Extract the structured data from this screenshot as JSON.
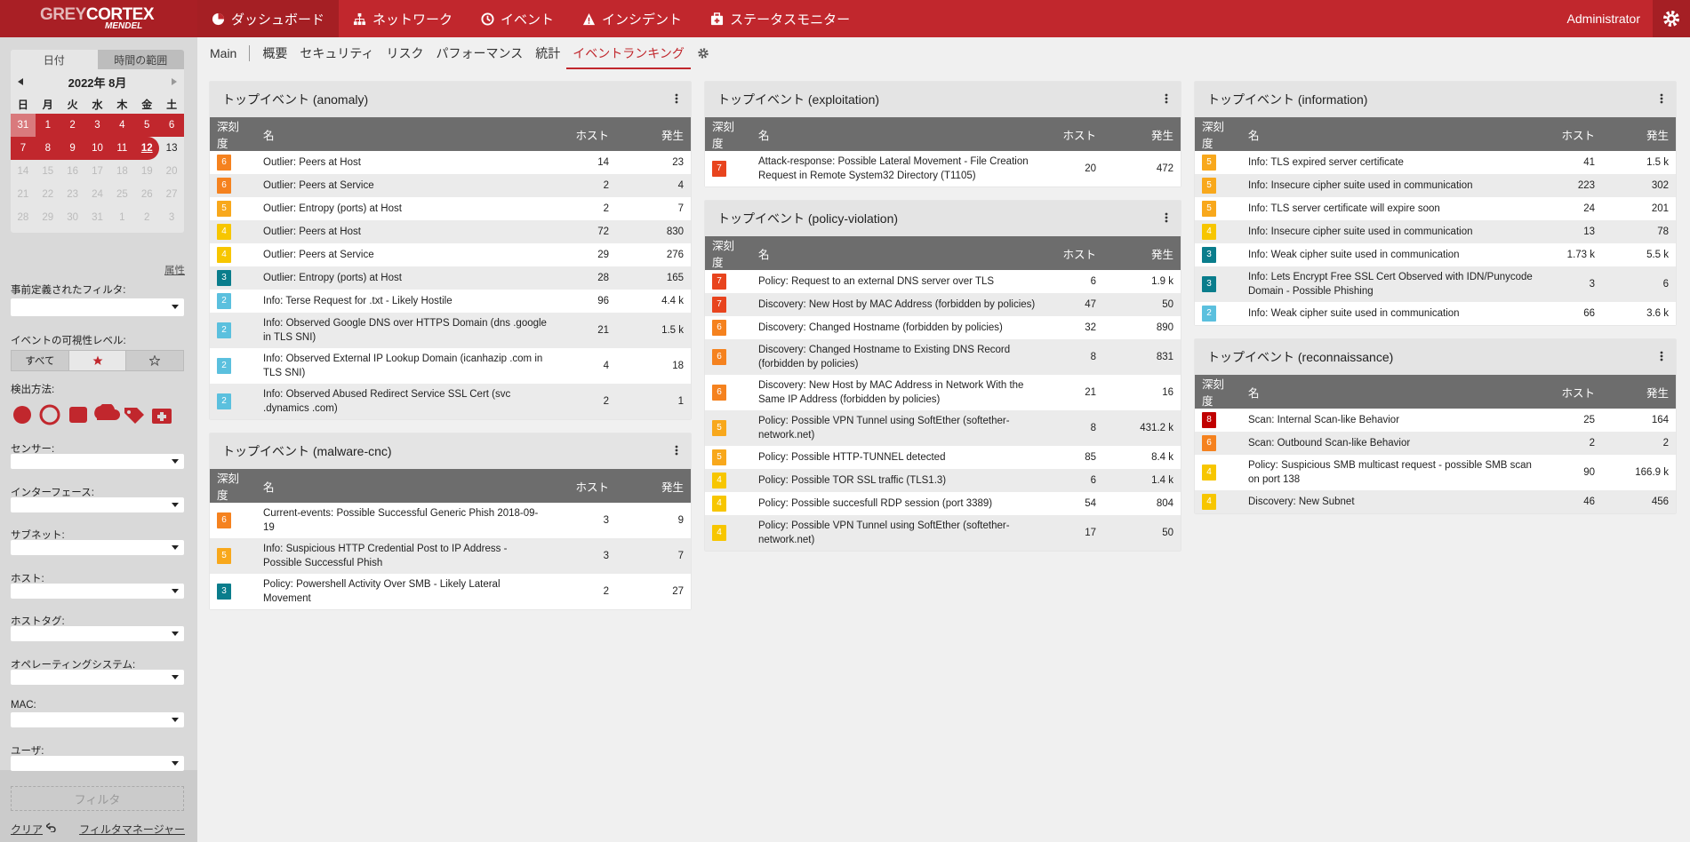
{
  "header": {
    "logo_grey": "GREY",
    "logo_cortex": "CORTEX",
    "logo_sub": "MENDEL",
    "nav": [
      "ダッシュボード",
      "ネットワーク",
      "イベント",
      "インシデント",
      "ステータスモニター"
    ],
    "user": "Administrator"
  },
  "subnav": [
    "Main",
    "概要",
    "セキュリティ",
    "リスク",
    "パフォーマンス",
    "統計",
    "イベントランキング"
  ],
  "sidebar": {
    "tabs": [
      "日付",
      "時間の範囲"
    ],
    "month": "2022年 8月",
    "weekdays": [
      "日",
      "月",
      "火",
      "水",
      "木",
      "金",
      "土"
    ],
    "days": [
      31,
      1,
      2,
      3,
      4,
      5,
      6,
      7,
      8,
      9,
      10,
      11,
      12,
      13,
      14,
      15,
      16,
      17,
      18,
      19,
      20,
      21,
      22,
      23,
      24,
      25,
      26,
      27,
      28,
      29,
      30,
      31,
      1,
      2,
      3
    ],
    "attributes": "属性",
    "predefined": "事前定義されたフィルタ:",
    "visibility": "イベントの可視性レベル:",
    "visibility_all": "すべて",
    "detection": "検出方法:",
    "filters": [
      "センサー:",
      "インターフェース:",
      "サブネット:",
      "ホスト:",
      "ホストタグ:",
      "オペレーティングシステム:",
      "MAC:",
      "ユーザ:"
    ],
    "filter_button": "フィルタ",
    "clear": "クリア",
    "filter_manager": "フィルタマネージャー"
  },
  "columns": [
    {
      "panels": [
        {
          "title": "トップイベント (anomaly)",
          "columns": [
            "深刻度",
            "名",
            "ホスト",
            "発生"
          ],
          "rows": [
            [
              6,
              "Outlier: Peers at Host",
              "14",
              "23"
            ],
            [
              6,
              "Outlier: Peers at Service",
              "2",
              "4"
            ],
            [
              5,
              "Outlier: Entropy (ports) at Host",
              "2",
              "7"
            ],
            [
              4,
              "Outlier: Peers at Host",
              "72",
              "830"
            ],
            [
              4,
              "Outlier: Peers at Service",
              "29",
              "276"
            ],
            [
              3,
              "Outlier: Entropy (ports) at Host",
              "28",
              "165"
            ],
            [
              2,
              "Info: Terse Request for .txt - Likely Hostile",
              "96",
              "4.4 k"
            ],
            [
              2,
              "Info: Observed Google DNS over HTTPS Domain (dns .google in TLS SNI)",
              "21",
              "1.5 k"
            ],
            [
              2,
              "Info: Observed External IP Lookup Domain (icanhazip .com in TLS SNI)",
              "4",
              "18"
            ],
            [
              2,
              "Info: Observed Abused Redirect Service SSL Cert (svc .dynamics .com)",
              "2",
              "1"
            ]
          ]
        },
        {
          "title": "トップイベント (malware-cnc)",
          "columns": [
            "深刻度",
            "名",
            "ホスト",
            "発生"
          ],
          "rows": [
            [
              6,
              "Current-events: Possible Successful Generic Phish 2018-09-19",
              "3",
              "9"
            ],
            [
              5,
              "Info: Suspicious HTTP Credential Post to IP Address - Possible Successful Phish",
              "3",
              "7"
            ],
            [
              3,
              "Policy: Powershell Activity Over SMB - Likely Lateral Movement",
              "2",
              "27"
            ]
          ]
        }
      ]
    },
    {
      "panels": [
        {
          "title": "トップイベント (exploitation)",
          "columns": [
            "深刻度",
            "名",
            "ホスト",
            "発生"
          ],
          "rows": [
            [
              7,
              "Attack-response: Possible Lateral Movement - File Creation Request in Remote System32 Directory (T1105)",
              "20",
              "472"
            ]
          ]
        },
        {
          "title": "トップイベント (policy-violation)",
          "columns": [
            "深刻度",
            "名",
            "ホスト",
            "発生"
          ],
          "rows": [
            [
              7,
              "Policy: Request to an external DNS server over TLS",
              "6",
              "1.9 k"
            ],
            [
              7,
              "Discovery: New Host by MAC Address (forbidden by policies)",
              "47",
              "50"
            ],
            [
              6,
              "Discovery: Changed Hostname (forbidden by policies)",
              "32",
              "890"
            ],
            [
              6,
              "Discovery: Changed Hostname to Existing DNS Record (forbidden by policies)",
              "8",
              "831"
            ],
            [
              6,
              "Discovery: New Host by MAC Address in Network With the Same IP Address (forbidden by policies)",
              "21",
              "16"
            ],
            [
              5,
              "Policy: Possible VPN Tunnel using SoftEther (softether-network.net)",
              "8",
              "431.2 k"
            ],
            [
              5,
              "Policy: Possible HTTP-TUNNEL detected",
              "85",
              "8.4 k"
            ],
            [
              4,
              "Policy: Possible TOR SSL traffic (TLS1.3)",
              "6",
              "1.4 k"
            ],
            [
              4,
              "Policy: Possible succesfull RDP session (port 3389)",
              "54",
              "804"
            ],
            [
              4,
              "Policy: Possible VPN Tunnel using SoftEther (softether-network.net)",
              "17",
              "50"
            ]
          ]
        }
      ]
    },
    {
      "panels": [
        {
          "title": "トップイベント (information)",
          "columns": [
            "深刻度",
            "名",
            "ホスト",
            "発生"
          ],
          "rows": [
            [
              5,
              "Info: TLS expired server certificate",
              "41",
              "1.5 k"
            ],
            [
              5,
              "Info: Insecure cipher suite used in communication",
              "223",
              "302"
            ],
            [
              5,
              "Info: TLS server certificate will expire soon",
              "24",
              "201"
            ],
            [
              4,
              "Info: Insecure cipher suite used in communication",
              "13",
              "78"
            ],
            [
              3,
              "Info: Weak cipher suite used in communication",
              "1.73 k",
              "5.5 k"
            ],
            [
              3,
              "Info: Lets Encrypt Free SSL Cert Observed with IDN/Punycode Domain - Possible Phishing",
              "3",
              "6"
            ],
            [
              2,
              "Info: Weak cipher suite used in communication",
              "66",
              "3.6 k"
            ]
          ]
        },
        {
          "title": "トップイベント (reconnaissance)",
          "columns": [
            "深刻度",
            "名",
            "ホスト",
            "発生"
          ],
          "rows": [
            [
              8,
              "Scan: Internal Scan-like Behavior",
              "25",
              "164"
            ],
            [
              6,
              "Scan: Outbound Scan-like Behavior",
              "2",
              "2"
            ],
            [
              4,
              "Policy: Suspicious SMB multicast request - possible SMB scan on port 138",
              "90",
              "166.9 k"
            ],
            [
              4,
              "Discovery: New Subnet",
              "46",
              "456"
            ]
          ]
        }
      ]
    }
  ]
}
